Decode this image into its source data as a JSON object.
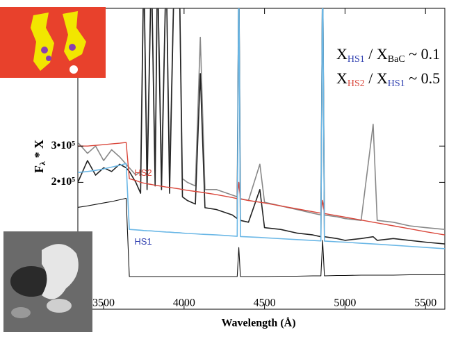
{
  "chart_data": {
    "type": "line",
    "xlabel": "Wavelength (Å)",
    "ylabel": {
      "main": "F",
      "sub": "λ",
      "rest": " * X"
    },
    "x": [
      3340,
      3400,
      3450,
      3500,
      3550,
      3600,
      3640,
      3660,
      3700,
      3730,
      3750,
      3770,
      3797,
      3820,
      3835,
      3860,
      3889,
      3910,
      3940,
      3970,
      3990,
      4020,
      4070,
      4101,
      4130,
      4200,
      4300,
      4330,
      4340,
      4350,
      4400,
      4471,
      4500,
      4600,
      4700,
      4800,
      4850,
      4861,
      4872,
      4950,
      5000,
      5100,
      5175,
      5200,
      5300,
      5400,
      5500,
      5620
    ],
    "series": [
      {
        "color": "#888888",
        "width": 1.6,
        "values": [
          310000,
          280000,
          300000,
          260000,
          290000,
          270000,
          250000,
          240000,
          220000,
          230000,
          800000,
          230000,
          800000,
          240000,
          800000,
          230000,
          800000,
          220000,
          800000,
          800000,
          210000,
          200000,
          190000,
          600000,
          180000,
          180000,
          165000,
          160000,
          800000,
          155000,
          150000,
          250000,
          145000,
          135000,
          125000,
          115000,
          110000,
          800000,
          110000,
          105000,
          100000,
          95000,
          360000,
          95000,
          90000,
          80000,
          75000,
          70000
        ]
      },
      {
        "color": "#222222",
        "width": 1.6,
        "values": [
          200000,
          260000,
          220000,
          240000,
          230000,
          250000,
          240000,
          230000,
          200000,
          170000,
          800000,
          180000,
          800000,
          190000,
          800000,
          180000,
          800000,
          170000,
          800000,
          800000,
          160000,
          150000,
          140000,
          500000,
          130000,
          125000,
          110000,
          100000,
          800000,
          95000,
          90000,
          180000,
          75000,
          70000,
          60000,
          55000,
          50000,
          800000,
          50000,
          45000,
          40000,
          45000,
          50000,
          40000,
          45000,
          40000,
          35000,
          30000
        ]
      },
      {
        "name": "HS2",
        "color": "#d9463a",
        "width": 1.4,
        "values": [
          300000,
          300000,
          302000,
          304000,
          306000,
          308000,
          310000,
          210000,
          205000,
          200000,
          198000,
          196000,
          194000,
          192000,
          191000,
          189000,
          187000,
          186000,
          184000,
          182000,
          180000,
          178000,
          175000,
          173000,
          171000,
          166000,
          158000,
          155000,
          200000,
          154000,
          150000,
          145000,
          143000,
          135000,
          127000,
          119000,
          115000,
          150000,
          114000,
          108000,
          104000,
          96000,
          90000,
          88000,
          80000,
          72000,
          64000,
          55000
        ]
      },
      {
        "name": "HS1",
        "color": "#6ab7e6",
        "width": 1.6,
        "label_color": "#3040b0",
        "values": [
          227000,
          230000,
          233000,
          237000,
          242000,
          247000,
          252000,
          70000,
          69000,
          68000,
          67000,
          66500,
          66000,
          65000,
          64500,
          64000,
          63000,
          62500,
          61500,
          61000,
          60000,
          59000,
          58000,
          57000,
          56500,
          55000,
          52000,
          51000,
          800000,
          50500,
          49500,
          48000,
          47000,
          44500,
          42000,
          39500,
          38500,
          800000,
          38000,
          36000,
          35000,
          32000,
          30000,
          29500,
          26500,
          23500,
          20500,
          17000
        ]
      },
      {
        "color": "#111111",
        "width": 1.1,
        "values": [
          131000,
          135000,
          139000,
          143000,
          147000,
          152000,
          156000,
          -60000,
          -60000,
          -60000,
          -60000,
          -60000,
          -60000,
          -60000,
          -60000,
          -60000,
          -60000,
          -60000,
          -60000,
          -60000,
          -60000,
          -60000,
          -60000,
          -60000,
          -60000,
          -60000,
          -60000,
          -60000,
          20000,
          -60000,
          -60000,
          -60000,
          -60000,
          -59000,
          -59000,
          -58000,
          -58000,
          40000,
          -58000,
          -57000,
          -57000,
          -56000,
          -56000,
          -56000,
          -56000,
          -55000,
          -55000,
          -55000
        ]
      }
    ],
    "xlim": [
      3340,
      5620
    ],
    "ylim": [
      -150000,
      680000
    ],
    "xticks": [
      3500,
      4000,
      4500,
      5000,
      5500
    ],
    "yticks": [
      {
        "value": 200000,
        "label": "2•10⁵"
      },
      {
        "value": 300000,
        "label": "3•10⁵"
      }
    ],
    "annotations": [
      [
        {
          "text": "X"
        },
        {
          "text": "HS1",
          "sub": true,
          "color": "#3040b0"
        },
        {
          "text": " / X"
        },
        {
          "text": "BaC",
          "sub": true
        },
        {
          "text": " ~ 0.1"
        }
      ],
      [
        {
          "text": "X"
        },
        {
          "text": "HS2",
          "sub": true,
          "color": "#d9463a"
        },
        {
          "text": " / X"
        },
        {
          "text": "HS1",
          "sub": true,
          "color": "#3040b0"
        },
        {
          "text": " ~ 0.5"
        }
      ]
    ]
  }
}
